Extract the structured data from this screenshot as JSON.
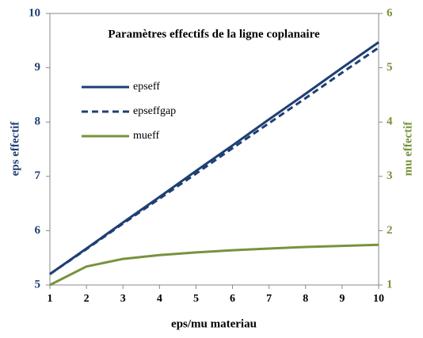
{
  "chart_data": {
    "type": "line",
    "title": "Paramètres effectifs de la ligne coplanaire",
    "xlabel": "eps/mu materiau",
    "ylabel": "eps effectif",
    "y2label": "mu effectif",
    "x": [
      1,
      2,
      3,
      4,
      5,
      6,
      7,
      8,
      9,
      10
    ],
    "series": [
      {
        "name": "epseff",
        "color": "#1f3f74",
        "dash": "solid",
        "values": [
          5.2,
          5.67,
          6.15,
          6.62,
          7.1,
          7.57,
          8.05,
          8.52,
          9.0,
          9.47
        ]
      },
      {
        "name": "epseffgap",
        "color": "#1f3f74",
        "dash": "dashed",
        "values": [
          5.2,
          5.66,
          6.13,
          6.59,
          7.05,
          7.52,
          7.98,
          8.44,
          8.91,
          9.37
        ]
      },
      {
        "name": "mueff",
        "color": "#77933c",
        "dash": "solid",
        "axis": "y2",
        "values": [
          1.0,
          1.34,
          1.48,
          1.55,
          1.6,
          1.64,
          1.67,
          1.7,
          1.72,
          1.74
        ]
      }
    ],
    "xlim": [
      1,
      10
    ],
    "xticks": [
      1,
      2,
      3,
      4,
      5,
      6,
      7,
      8,
      9,
      10
    ],
    "ylim": [
      5,
      10
    ],
    "yticks": [
      5,
      6,
      7,
      8,
      9,
      10
    ],
    "y2lim": [
      1,
      6
    ],
    "y2ticks": [
      1,
      2,
      3,
      4,
      5,
      6
    ],
    "grid": false,
    "legend": "upper left"
  }
}
